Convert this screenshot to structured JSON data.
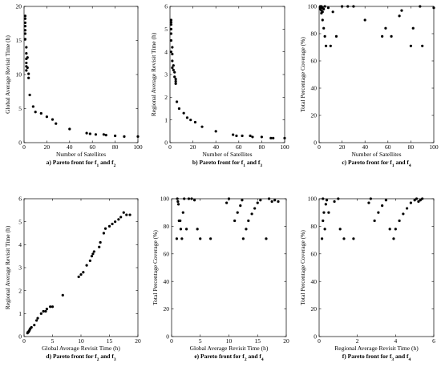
{
  "chart_data": [
    {
      "id": "a",
      "type": "scatter",
      "caption": "a) Pareto front for f",
      "caption_sub1": "1",
      "caption_mid": " and f",
      "caption_sub2": "2",
      "xlabel": "Number of Satellites",
      "ylabel": "Global Average Revisit Time (h)",
      "xlim": [
        0,
        100
      ],
      "ylim": [
        0,
        20
      ],
      "xticks": [
        0,
        20,
        40,
        60,
        80,
        100
      ],
      "yticks": [
        0,
        5,
        10,
        15,
        20
      ],
      "x": [
        1,
        1,
        1,
        1,
        1,
        1,
        1,
        2,
        2,
        2,
        2,
        2,
        2,
        3,
        3,
        4,
        4,
        5,
        8,
        10,
        15,
        20,
        25,
        28,
        40,
        55,
        58,
        63,
        70,
        72,
        80,
        88,
        100
      ],
      "y": [
        18.6,
        18.2,
        17.6,
        17.1,
        16.5,
        16.0,
        15.2,
        14.0,
        13.1,
        12.3,
        11.7,
        11.2,
        10.6,
        12.5,
        11.0,
        10.1,
        9.5,
        7.0,
        5.3,
        4.5,
        4.3,
        3.8,
        3.4,
        2.8,
        2.0,
        1.4,
        1.3,
        1.2,
        1.2,
        1.1,
        1.0,
        0.9,
        0.9
      ]
    },
    {
      "id": "b",
      "type": "scatter",
      "caption": "b) Pareto front for f",
      "caption_sub1": "1",
      "caption_mid": " and f",
      "caption_sub2": "3",
      "xlabel": "Number of Satellites",
      "ylabel": "Regional Average Revisit Time (h)",
      "xlim": [
        0,
        100
      ],
      "ylim": [
        0,
        6
      ],
      "xticks": [
        0,
        20,
        40,
        60,
        80,
        100
      ],
      "yticks": [
        0,
        1,
        2,
        3,
        4,
        5,
        6
      ],
      "x": [
        1,
        1,
        1,
        1,
        1,
        1,
        1,
        2,
        2,
        2,
        2,
        3,
        3,
        4,
        4,
        5,
        5,
        5,
        6,
        8,
        12,
        15,
        18,
        22,
        28,
        40,
        55,
        58,
        63,
        70,
        72,
        80,
        88,
        90,
        100
      ],
      "y": [
        5.4,
        5.3,
        5.2,
        5.0,
        4.8,
        4.5,
        4.0,
        4.2,
        3.9,
        3.6,
        3.3,
        3.4,
        3.2,
        3.1,
        2.9,
        2.8,
        2.7,
        2.6,
        1.8,
        1.5,
        1.3,
        1.1,
        1.0,
        0.9,
        0.7,
        0.5,
        0.35,
        0.3,
        0.3,
        0.3,
        0.25,
        0.25,
        0.2,
        0.2,
        0.2
      ]
    },
    {
      "id": "c",
      "type": "scatter",
      "caption": "c) Pareto front for f",
      "caption_sub1": "1",
      "caption_mid": " and f",
      "caption_sub2": "4",
      "xlabel": "Number of Satellites",
      "ylabel": "Total Percentage Coverage (%)",
      "xlim": [
        0,
        100
      ],
      "ylim": [
        0,
        100
      ],
      "xticks": [
        0,
        20,
        40,
        60,
        80,
        100
      ],
      "yticks": [
        0,
        20,
        40,
        60,
        80,
        100
      ],
      "x": [
        1,
        1,
        1,
        2,
        2,
        2,
        3,
        3,
        3,
        4,
        4,
        5,
        5,
        6,
        8,
        10,
        12,
        15,
        20,
        25,
        30,
        40,
        55,
        58,
        63,
        70,
        72,
        80,
        82,
        88,
        90,
        100
      ],
      "y": [
        100,
        99,
        98,
        100,
        97,
        95,
        99,
        96,
        90,
        98,
        84,
        100,
        78,
        71,
        99,
        71,
        96,
        78,
        100,
        100,
        100,
        90,
        78,
        84,
        78,
        93,
        97,
        71,
        84,
        100,
        71,
        99
      ]
    },
    {
      "id": "d",
      "type": "scatter",
      "caption": "d) Pareto front for f",
      "caption_sub1": "2",
      "caption_mid": " and f",
      "caption_sub2": "3",
      "xlabel": "Global Average Revisit Time (h)",
      "ylabel": "Regional Average Revisit Time (h)",
      "xlim": [
        0,
        20
      ],
      "ylim": [
        0,
        6
      ],
      "xticks": [
        0,
        5,
        10,
        15,
        20
      ],
      "yticks": [
        0,
        1,
        2,
        3,
        4,
        5,
        6
      ],
      "x": [
        0.6,
        0.7,
        0.8,
        0.9,
        1.0,
        1.1,
        1.3,
        1.8,
        2.2,
        2.4,
        3.0,
        3.4,
        3.8,
        4.0,
        4.6,
        5.0,
        6.8,
        9.6,
        10.0,
        10.4,
        11.0,
        11.6,
        11.9,
        12.1,
        12.3,
        13.2,
        13.4,
        14.0,
        14.3,
        15.0,
        15.5,
        16.0,
        16.6,
        17.0,
        17.5,
        18.0,
        18.6
      ],
      "y": [
        0.15,
        0.2,
        0.2,
        0.25,
        0.3,
        0.35,
        0.4,
        0.5,
        0.7,
        0.8,
        1.0,
        1.1,
        1.1,
        1.2,
        1.3,
        1.3,
        1.8,
        2.6,
        2.7,
        2.8,
        3.1,
        3.3,
        3.5,
        3.6,
        3.7,
        3.9,
        4.1,
        4.5,
        4.7,
        4.8,
        4.9,
        5.0,
        5.1,
        5.2,
        5.4,
        5.3,
        5.3
      ]
    },
    {
      "id": "e",
      "type": "scatter",
      "caption": "e) Pareto front for f",
      "caption_sub1": "2",
      "caption_mid": " and f",
      "caption_sub2": "4",
      "xlabel": "Global Average Revisit Time (h)",
      "ylabel": "Total Percentage Coverage (%)",
      "xlim": [
        0,
        20
      ],
      "ylim": [
        0,
        100
      ],
      "xticks": [
        0,
        5,
        10,
        15,
        20
      ],
      "yticks": [
        0,
        20,
        40,
        60,
        80,
        100
      ],
      "x": [
        0.9,
        1.0,
        1.1,
        1.2,
        1.3,
        1.5,
        1.6,
        1.8,
        2.0,
        2.2,
        2.6,
        3.0,
        3.5,
        4.0,
        4.5,
        5.0,
        6.8,
        9.6,
        10.0,
        11.0,
        11.5,
        12.0,
        12.3,
        12.5,
        13.0,
        13.4,
        14.0,
        14.5,
        15.0,
        15.5,
        16.5,
        17.0,
        17.5,
        18.0,
        18.6
      ],
      "y": [
        71,
        100,
        98,
        96,
        84,
        84,
        78,
        71,
        90,
        100,
        78,
        100,
        100,
        99,
        78,
        71,
        71,
        97,
        100,
        84,
        90,
        95,
        99,
        71,
        78,
        84,
        89,
        93,
        97,
        99,
        71,
        100,
        98,
        99,
        98
      ]
    },
    {
      "id": "f",
      "type": "scatter",
      "caption": "f) Pareto front for f",
      "caption_sub1": "3",
      "caption_mid": " and f",
      "caption_sub2": "4",
      "xlabel": "Regional Average Revisit Time (h)",
      "ylabel": "Total Percentage Coverage (%)",
      "xlim": [
        0,
        6
      ],
      "ylim": [
        0,
        100
      ],
      "xticks": [
        0,
        2,
        4,
        6
      ],
      "yticks": [
        0,
        20,
        40,
        60,
        80,
        100
      ],
      "x": [
        0.15,
        0.2,
        0.2,
        0.25,
        0.3,
        0.35,
        0.4,
        0.5,
        0.8,
        1.0,
        1.1,
        1.3,
        1.8,
        2.6,
        2.7,
        2.9,
        3.1,
        3.3,
        3.5,
        3.7,
        3.9,
        4.0,
        4.2,
        4.4,
        4.6,
        4.8,
        5.0,
        5.1,
        5.2,
        5.3,
        5.4
      ],
      "y": [
        71,
        100,
        84,
        90,
        78,
        96,
        99,
        90,
        98,
        100,
        78,
        71,
        71,
        97,
        100,
        84,
        90,
        95,
        99,
        78,
        71,
        78,
        84,
        89,
        93,
        97,
        99,
        100,
        98,
        99,
        100
      ]
    }
  ]
}
